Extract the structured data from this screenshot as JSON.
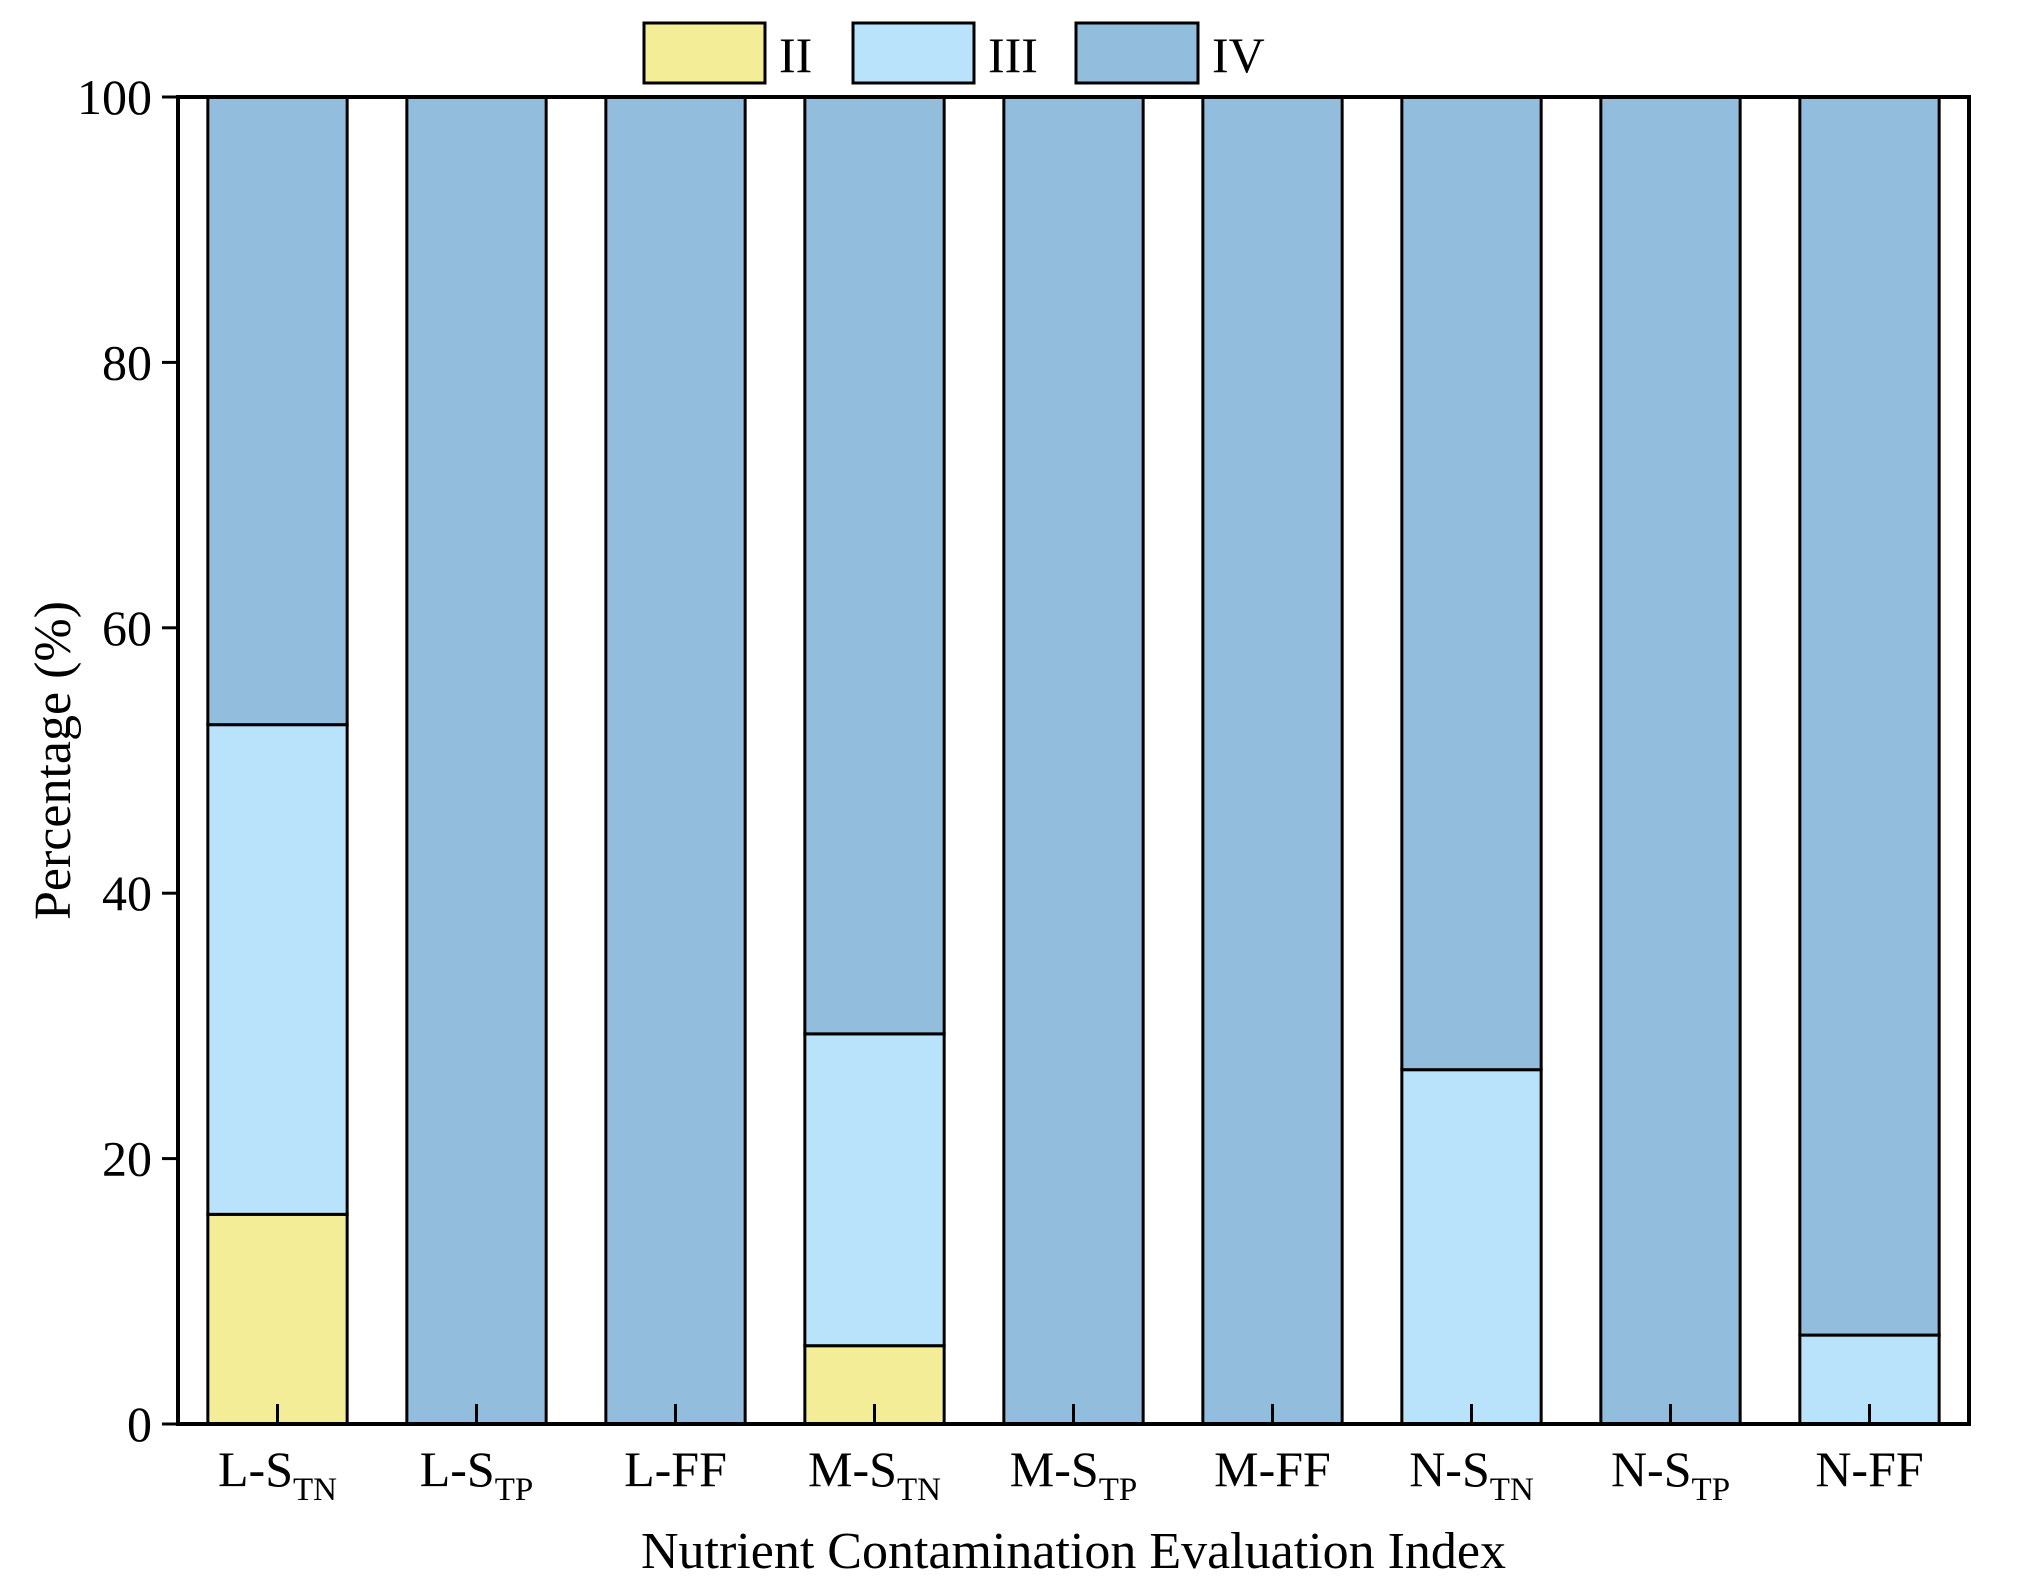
{
  "chart_data": {
    "type": "bar",
    "stacked": true,
    "title": "",
    "xlabel": "Nutrient Contamination Evaluation Index",
    "ylabel": "Percentage (%)",
    "ylim": [
      0,
      100
    ],
    "yticks": [
      0,
      20,
      40,
      60,
      80,
      100
    ],
    "grid": false,
    "legend_position": "top-center",
    "categories": [
      {
        "main": "L-S",
        "sub": "TN"
      },
      {
        "main": "L-S",
        "sub": "TP"
      },
      {
        "main": "L-FF",
        "sub": ""
      },
      {
        "main": "M-S",
        "sub": "TN"
      },
      {
        "main": "M-S",
        "sub": "TP"
      },
      {
        "main": "M-FF",
        "sub": ""
      },
      {
        "main": "N-S",
        "sub": "TN"
      },
      {
        "main": "N-S",
        "sub": "TP"
      },
      {
        "main": "N-FF",
        "sub": ""
      }
    ],
    "series": [
      {
        "name": "II",
        "color": "#f2ed96",
        "values": [
          15.8,
          0,
          0,
          5.9,
          0,
          0,
          0,
          0,
          0
        ]
      },
      {
        "name": "III",
        "color": "#b8e3fb",
        "values": [
          36.9,
          0,
          0,
          23.5,
          0,
          0,
          26.7,
          0,
          6.7
        ]
      },
      {
        "name": "IV",
        "color": "#93bddc",
        "values": [
          47.3,
          100,
          100,
          70.6,
          100,
          100,
          73.3,
          100,
          93.3
        ]
      }
    ]
  }
}
